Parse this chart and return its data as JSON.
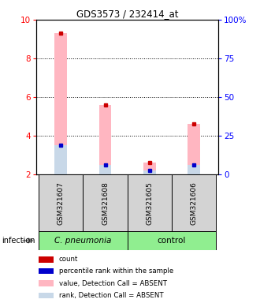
{
  "title": "GDS3573 / 232414_at",
  "samples": [
    "GSM321607",
    "GSM321608",
    "GSM321605",
    "GSM321606"
  ],
  "bar_value_absent": [
    9.3,
    5.6,
    2.6,
    4.6
  ],
  "bar_rank_absent": [
    3.5,
    2.5,
    2.2,
    2.5
  ],
  "bar_value_color": "#FFB6C1",
  "bar_rank_color": "#C8D8E8",
  "dot_count_color": "#CC0000",
  "dot_rank_color": "#0000CC",
  "ylim_left": [
    2,
    10
  ],
  "ylim_right": [
    0,
    100
  ],
  "yticks_left": [
    2,
    4,
    6,
    8,
    10
  ],
  "ytick_labels_right": [
    "0",
    "25",
    "50",
    "75",
    "100%"
  ],
  "background_color": "#ffffff",
  "sample_box_color": "#d3d3d3",
  "legend_items": [
    {
      "color": "#CC0000",
      "label": "count"
    },
    {
      "color": "#0000CC",
      "label": "percentile rank within the sample"
    },
    {
      "color": "#FFB6C1",
      "label": "value, Detection Call = ABSENT"
    },
    {
      "color": "#C8D8E8",
      "label": "rank, Detection Call = ABSENT"
    }
  ],
  "group1_label": "C. pneumonia",
  "group2_label": "control",
  "infection_label": "infection",
  "bar_width": 0.28,
  "x_positions": [
    0,
    1,
    2,
    3
  ]
}
